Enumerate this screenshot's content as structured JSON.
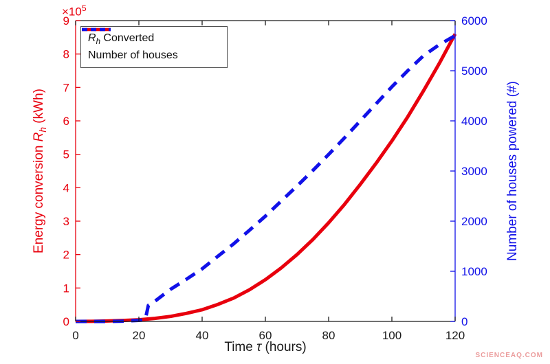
{
  "figure": {
    "watermark": "SCIENCEAQ.COM"
  },
  "axes": {
    "xlabel": {
      "pre": "Time ",
      "sym": "τ",
      "post": " (hours)"
    },
    "ylabel_left": {
      "pre": "Energy conversion ",
      "sym": "R",
      "sub": "h",
      "post": " (kWh)"
    },
    "ylabel_right": "Number of houses powered (#)",
    "multiplier": {
      "base": "×10",
      "exp": "5"
    }
  },
  "legend": {
    "entries": [
      {
        "sym": "R",
        "sub": "h",
        "post": " Converted"
      },
      {
        "label": "Number of houses"
      }
    ]
  },
  "chart_data": {
    "type": "line",
    "title": "",
    "xlabel": "Time τ (hours)",
    "ylabel_left": "Energy conversion R_h (kWh)",
    "ylabel_right": "Number of houses powered (#)",
    "xlim": [
      0,
      120
    ],
    "ylim_left": [
      0,
      900000
    ],
    "ylim_right": [
      0,
      6000
    ],
    "x_ticks": [
      0,
      20,
      40,
      60,
      80,
      100,
      120
    ],
    "y_left_ticks": [
      0,
      1,
      2,
      3,
      4,
      5,
      6,
      7,
      8,
      9
    ],
    "y_left_tick_scale": 100000,
    "y_left_multiplier": "×10^5",
    "y_right_ticks": [
      0,
      1000,
      2000,
      3000,
      4000,
      5000,
      6000
    ],
    "grid": false,
    "legend_position": "top-left",
    "colors": {
      "left_axis": "#e8000d",
      "right_axis": "#1111e8",
      "x_axis": "#1a1a1a"
    },
    "series": [
      {
        "name": "R_h Converted",
        "axis": "left",
        "color": "#e8000d",
        "style": "solid",
        "x": [
          0,
          5,
          10,
          15,
          20,
          25,
          30,
          35,
          40,
          45,
          50,
          55,
          60,
          65,
          70,
          75,
          80,
          85,
          90,
          95,
          100,
          105,
          110,
          115,
          120
        ],
        "y": [
          0,
          300,
          1200,
          2800,
          5000,
          9000,
          15000,
          24000,
          35000,
          51000,
          70000,
          95000,
          125000,
          160000,
          200000,
          245000,
          295000,
          350000,
          410000,
          473000,
          540000,
          612000,
          690000,
          772000,
          860000
        ]
      },
      {
        "name": "Number of houses",
        "axis": "right",
        "color": "#1111e8",
        "style": "dashed",
        "x": [
          0,
          5,
          10,
          15,
          20,
          22,
          23,
          25,
          30,
          35,
          40,
          45,
          50,
          55,
          60,
          65,
          70,
          75,
          80,
          85,
          90,
          95,
          100,
          105,
          110,
          115,
          120
        ],
        "y": [
          0,
          0,
          0,
          5,
          20,
          30,
          320,
          400,
          640,
          840,
          1050,
          1300,
          1550,
          1820,
          2100,
          2400,
          2700,
          3010,
          3330,
          3660,
          4000,
          4340,
          4680,
          5000,
          5300,
          5520,
          5700
        ]
      }
    ]
  }
}
